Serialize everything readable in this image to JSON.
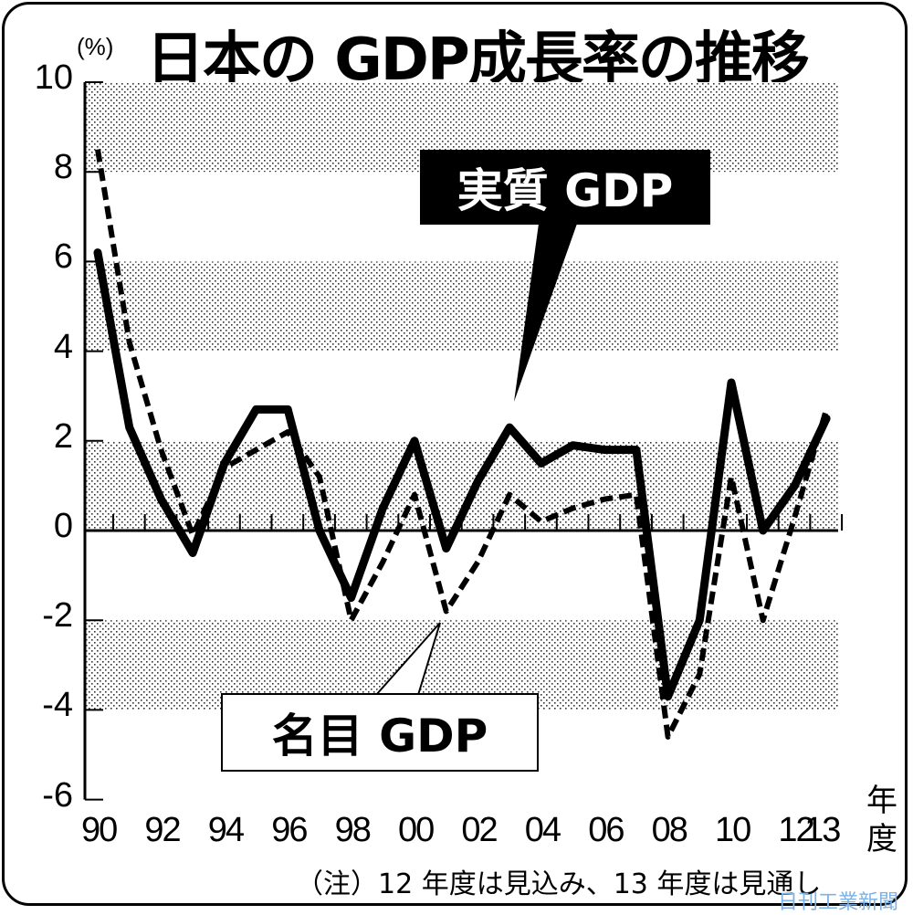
{
  "header": {
    "title": "日本の GDP成長率の推移",
    "unit": "(%)"
  },
  "axes": {
    "y_ticks": [
      "10",
      "8",
      "6",
      "4",
      "2",
      "0",
      "-2",
      "-4",
      "-6"
    ],
    "x_ticks": [
      "90",
      "92",
      "94",
      "96",
      "98",
      "00",
      "02",
      "04",
      "06",
      "08",
      "10",
      "12",
      "13"
    ],
    "x_unit": "年度"
  },
  "legend": {
    "real": "実質 GDP",
    "nominal": "名目 GDP"
  },
  "footer": {
    "note": "（注）12 年度は見込み、13 年度は見通し",
    "watermark": "日刊工業新聞"
  },
  "colors": {
    "line": "#000000",
    "band_fill": "#d8d8d8",
    "watermark": "#7fb2e5",
    "background": "#ffffff"
  },
  "chart_data": {
    "type": "line",
    "title": "日本の GDP成長率の推移",
    "xlabel": "年度",
    "ylabel": "(%)",
    "ylim": [
      -6,
      10
    ],
    "x": [
      "1990",
      "1991",
      "1992",
      "1993",
      "1994",
      "1995",
      "1996",
      "1997",
      "1998",
      "1999",
      "2000",
      "2001",
      "2002",
      "2003",
      "2004",
      "2005",
      "2006",
      "2007",
      "2008",
      "2009",
      "2010",
      "2011",
      "2012",
      "2013"
    ],
    "series": [
      {
        "name": "実質 GDP",
        "style": "solid",
        "values": [
          6.2,
          2.3,
          0.7,
          -0.5,
          1.5,
          2.7,
          2.7,
          0.0,
          -1.5,
          0.5,
          2.0,
          -0.4,
          1.1,
          2.3,
          1.5,
          1.9,
          1.8,
          1.8,
          -3.7,
          -2.0,
          3.3,
          0.0,
          1.0,
          2.5
        ]
      },
      {
        "name": "名目 GDP",
        "style": "dashed",
        "values": [
          8.5,
          4.2,
          1.8,
          -0.1,
          1.4,
          1.8,
          2.2,
          1.2,
          -2.0,
          -0.7,
          0.8,
          -1.8,
          -0.7,
          0.8,
          0.2,
          0.5,
          0.7,
          0.8,
          -4.6,
          -3.2,
          1.2,
          -2.0,
          0.3,
          2.7
        ]
      }
    ],
    "shaded_bands": [
      [
        8,
        10
      ],
      [
        4,
        6
      ],
      [
        0,
        2
      ],
      [
        -4,
        -2
      ]
    ],
    "grid": false,
    "legend_position": "callouts"
  }
}
